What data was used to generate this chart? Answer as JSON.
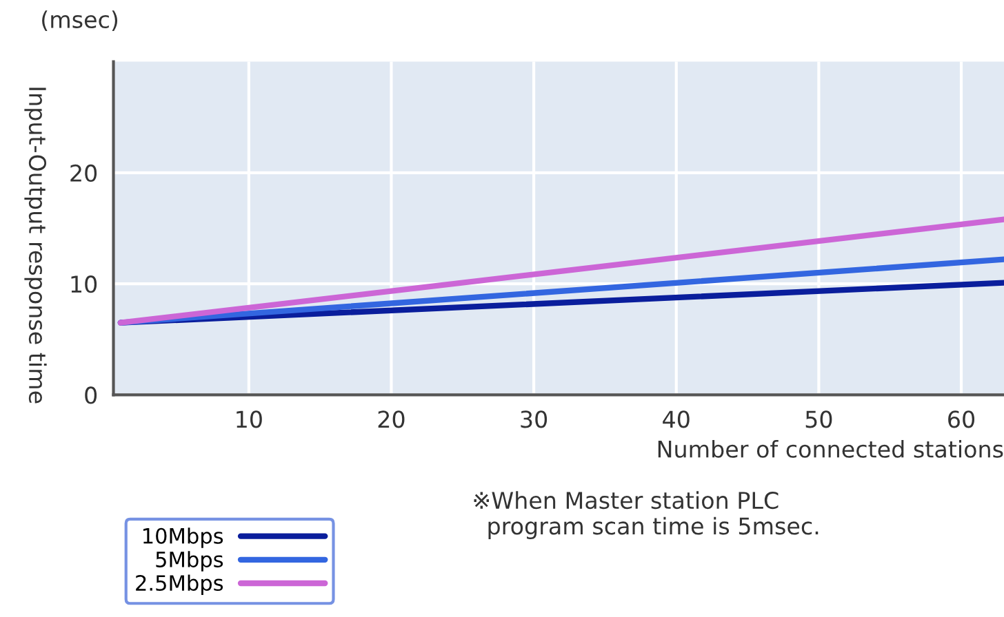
{
  "chart_data": {
    "type": "line",
    "xlabel": "Number of connected stations",
    "ylabel": "Input-Output response time",
    "annotations": [
      "(msec)",
      "※When Master station PLC\n  program scan time is 5msec."
    ],
    "x": [
      1,
      63
    ],
    "series": [
      {
        "name": "10Mbps",
        "color": "#0a1e9c",
        "values": [
          6.5,
          10.1
        ]
      },
      {
        "name": "5Mbps",
        "color": "#3366e0",
        "values": [
          6.5,
          12.2
        ]
      },
      {
        "name": "2.5Mbps",
        "color": "#cc66d6",
        "values": [
          6.5,
          15.8
        ]
      }
    ],
    "xlim": [
      0.5,
      63
    ],
    "xticks": [
      10,
      20,
      30,
      40,
      50,
      60
    ],
    "ylim": [
      0,
      30
    ],
    "yticks": [
      0,
      10,
      20
    ],
    "grid": true,
    "legend": "bottom left",
    "marker": "none",
    "line_style": "solid"
  }
}
